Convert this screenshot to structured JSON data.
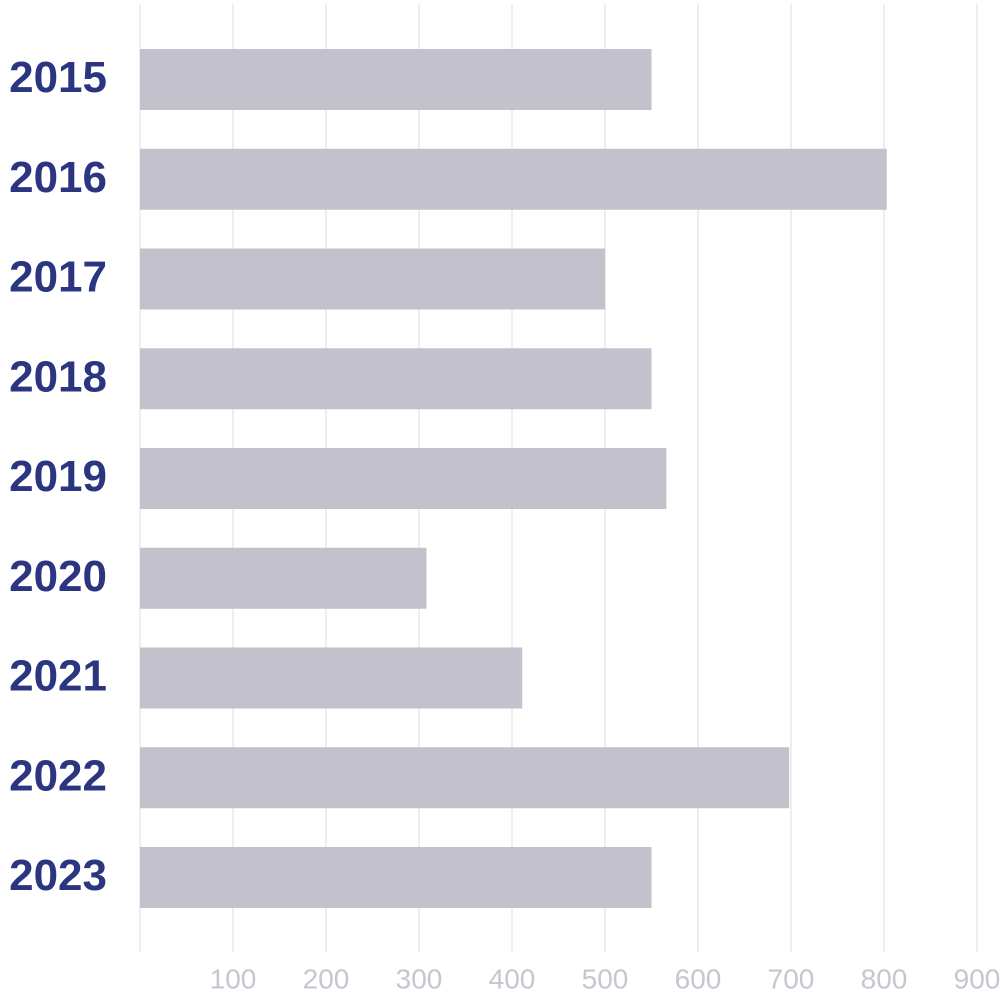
{
  "chart_data": {
    "type": "bar",
    "orientation": "horizontal",
    "categories": [
      "2015",
      "2016",
      "2017",
      "2018",
      "2019",
      "2020",
      "2021",
      "2022",
      "2023"
    ],
    "values": [
      550,
      803,
      500,
      550,
      566,
      308,
      411,
      698,
      550
    ],
    "title": "",
    "xlabel": "",
    "ylabel": "",
    "xlim": [
      0,
      900
    ],
    "x_ticks": [
      100,
      200,
      300,
      400,
      500,
      600,
      700,
      800,
      900
    ],
    "grid": "vertical",
    "legend": "none"
  },
  "colors": {
    "bar": "#c3c2cc",
    "category_label": "#2b3580",
    "tick_label": "#c6c6d1",
    "grid": "#dcdcde"
  }
}
